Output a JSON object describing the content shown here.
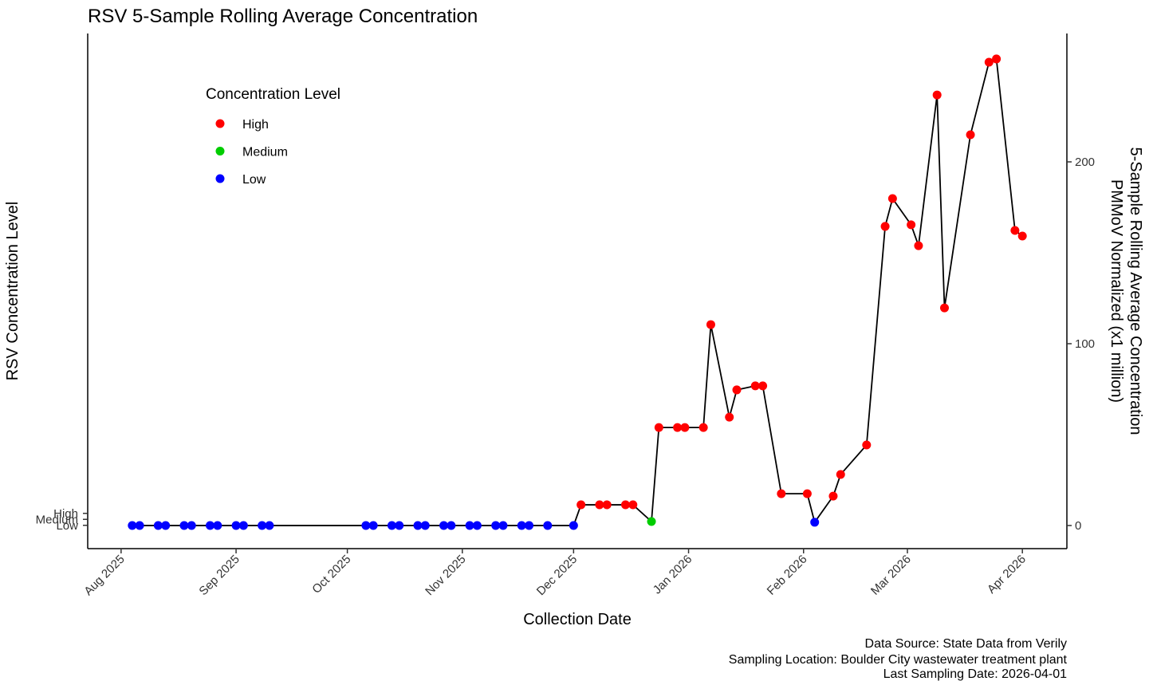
{
  "chart_data": {
    "type": "line",
    "title": "RSV 5-Sample Rolling Average Concentration",
    "xlabel": "Collection Date",
    "ylabel": "RSV Concentration Level",
    "y2label": [
      "5-Sample Rolling Average Concentration",
      "PMMoV Normalized (x1 million)"
    ],
    "caption": [
      "Data Source: State Data from Verily",
      "Sampling Location: Boulder City wastewater treatment plant",
      "Last Sampling Date: 2026-04-01"
    ],
    "xlim": [
      "2025-07-23",
      "2026-04-13"
    ],
    "xticks": [
      {
        "value": "2025-08-01",
        "label": "Aug 2025"
      },
      {
        "value": "2025-09-01",
        "label": "Sep 2025"
      },
      {
        "value": "2025-10-01",
        "label": "Oct 2025"
      },
      {
        "value": "2025-11-01",
        "label": "Nov 2025"
      },
      {
        "value": "2025-12-01",
        "label": "Dec 2025"
      },
      {
        "value": "2026-01-01",
        "label": "Jan 2026"
      },
      {
        "value": "2026-02-01",
        "label": "Feb 2026"
      },
      {
        "value": "2026-03-01",
        "label": "Mar 2026"
      },
      {
        "value": "2026-04-01",
        "label": "Apr 2026"
      }
    ],
    "ylim": [
      -2.9,
      83.3
    ],
    "yticks": [
      {
        "value": 1,
        "label": "Low"
      },
      {
        "value": 2,
        "label": "Medium"
      },
      {
        "value": 3,
        "label": "High"
      }
    ],
    "y2lim": [
      -12.7,
      270.6
    ],
    "y2ticks": [
      0,
      100,
      200
    ],
    "legend": {
      "title": "Concentration Level",
      "position": "upper left",
      "items": [
        {
          "name": "High",
          "color": "#ff0000"
        },
        {
          "name": "Medium",
          "color": "#00cd00"
        },
        {
          "name": "Low",
          "color": "#0000ff"
        }
      ]
    },
    "series": [
      {
        "axis": "y2",
        "color": "#000000",
        "x": [
          "2025-08-04",
          "2025-08-06",
          "2025-08-11",
          "2025-08-13",
          "2025-08-18",
          "2025-08-20",
          "2025-08-25",
          "2025-08-27",
          "2025-09-01",
          "2025-09-03",
          "2025-09-08",
          "2025-09-10",
          "2025-10-06",
          "2025-10-08",
          "2025-10-13",
          "2025-10-15",
          "2025-10-20",
          "2025-10-22",
          "2025-10-27",
          "2025-10-29",
          "2025-11-03",
          "2025-11-05",
          "2025-11-10",
          "2025-11-12",
          "2025-11-17",
          "2025-11-19",
          "2025-11-24",
          "2025-12-01",
          "2025-12-03",
          "2025-12-08",
          "2025-12-10",
          "2025-12-15",
          "2025-12-17",
          "2025-12-22",
          "2025-12-24",
          "2025-12-29",
          "2025-12-31",
          "2026-01-05",
          "2026-01-07",
          "2026-01-12",
          "2026-01-14",
          "2026-01-19",
          "2026-01-21",
          "2026-01-26",
          "2026-02-02",
          "2026-02-04",
          "2026-02-09",
          "2026-02-11",
          "2026-02-18",
          "2026-02-23",
          "2026-02-25",
          "2026-03-02",
          "2026-03-04",
          "2026-03-09",
          "2026-03-11",
          "2026-03-18",
          "2026-03-23",
          "2026-03-25",
          "2026-03-30",
          "2026-04-01"
        ],
        "values": [
          0,
          0,
          0,
          0,
          0,
          0,
          0,
          0,
          0,
          0,
          0,
          0,
          0,
          0,
          0,
          0,
          0,
          0,
          0,
          0,
          0,
          0,
          0,
          0,
          0,
          0,
          0,
          0,
          11.4,
          11.4,
          11.4,
          11.4,
          11.4,
          2.2,
          53.9,
          53.9,
          53.9,
          53.9,
          110.5,
          59.6,
          74.6,
          76.8,
          76.8,
          17.5,
          17.5,
          1.8,
          16.2,
          28.1,
          44.3,
          164.5,
          179.8,
          165.4,
          153.9,
          236.8,
          119.7,
          214.9,
          254.8,
          256.6,
          162.3,
          159.2
        ],
        "levels": [
          "Low",
          "Low",
          "Low",
          "Low",
          "Low",
          "Low",
          "Low",
          "Low",
          "Low",
          "Low",
          "Low",
          "Low",
          "Low",
          "Low",
          "Low",
          "Low",
          "Low",
          "Low",
          "Low",
          "Low",
          "Low",
          "Low",
          "Low",
          "Low",
          "Low",
          "Low",
          "Low",
          "Low",
          "High",
          "High",
          "High",
          "High",
          "High",
          "Medium",
          "High",
          "High",
          "High",
          "High",
          "High",
          "High",
          "High",
          "High",
          "High",
          "High",
          "High",
          "Low",
          "High",
          "High",
          "High",
          "High",
          "High",
          "High",
          "High",
          "High",
          "High",
          "High",
          "High",
          "High",
          "High",
          "High"
        ]
      }
    ]
  }
}
